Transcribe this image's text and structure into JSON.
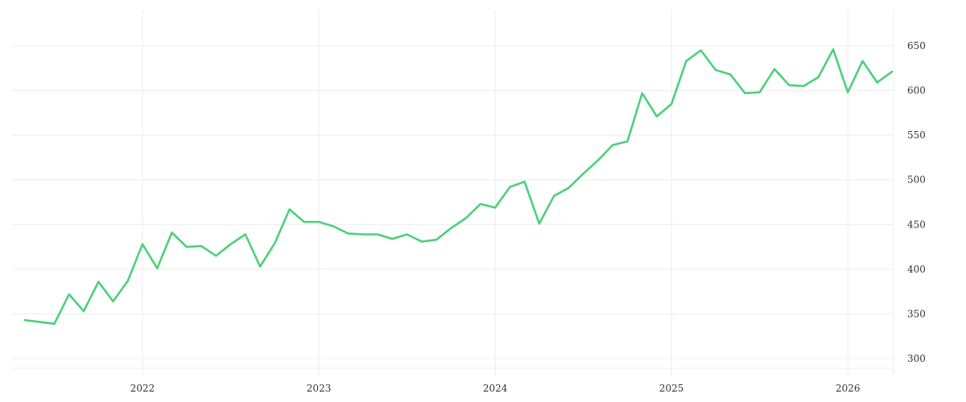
{
  "chart_data": {
    "type": "line",
    "title": "",
    "xlabel": "",
    "ylabel": "",
    "ylim": [
      285,
      685
    ],
    "grid": true,
    "legend": null,
    "line_color": "#4cd07a",
    "grid_color": "#ececec",
    "y_axis_position": "right",
    "y_ticks": [
      300,
      350,
      400,
      450,
      500,
      550,
      600,
      650
    ],
    "x_ticks": [
      {
        "label": "2022",
        "month_index": 8
      },
      {
        "label": "2023",
        "month_index": 20
      },
      {
        "label": "2024",
        "month_index": 32
      },
      {
        "label": "2025",
        "month_index": 44
      },
      {
        "label": "2026",
        "month_index": 56
      }
    ],
    "x_start": "2021-05",
    "x_end": "2026-04",
    "series": [
      {
        "name": "value",
        "x": [
          "2021-05",
          "2021-06",
          "2021-07",
          "2021-08",
          "2021-09",
          "2021-10",
          "2021-11",
          "2021-12",
          "2022-01",
          "2022-02",
          "2022-03",
          "2022-04",
          "2022-05",
          "2022-06",
          "2022-07",
          "2022-08",
          "2022-09",
          "2022-10",
          "2022-11",
          "2022-12",
          "2023-01",
          "2023-02",
          "2023-03",
          "2023-04",
          "2023-05",
          "2023-06",
          "2023-07",
          "2023-08",
          "2023-09",
          "2023-10",
          "2023-11",
          "2023-12",
          "2024-01",
          "2024-02",
          "2024-03",
          "2024-04",
          "2024-05",
          "2024-06",
          "2024-07",
          "2024-08",
          "2024-09",
          "2024-10",
          "2024-11",
          "2024-12",
          "2025-01",
          "2025-02",
          "2025-03",
          "2025-04",
          "2025-05",
          "2025-06",
          "2025-07",
          "2025-08",
          "2025-09",
          "2025-10",
          "2025-11",
          "2025-12",
          "2026-01",
          "2026-02",
          "2026-03",
          "2026-04"
        ],
        "values": [
          343,
          341,
          339,
          372,
          353,
          386,
          364,
          387,
          428,
          401,
          441,
          425,
          426,
          415,
          428,
          439,
          403,
          429,
          467,
          453,
          453,
          448,
          440,
          439,
          439,
          434,
          439,
          431,
          433,
          446,
          457,
          473,
          469,
          492,
          498,
          451,
          482,
          491,
          507,
          522,
          539,
          543,
          597,
          571,
          585,
          633,
          645,
          623,
          618,
          597,
          598,
          624,
          606,
          605,
          615,
          646,
          598,
          633,
          609,
          621
        ]
      }
    ]
  }
}
